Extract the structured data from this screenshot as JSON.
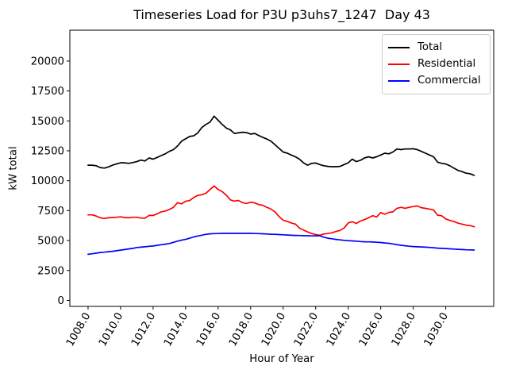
{
  "chart_data": {
    "type": "line",
    "title": "Timeseries Load for P3U p3uhs7_1247  Day 43",
    "xlabel": "Hour of Year",
    "ylabel": "kW total",
    "grid": false,
    "legend_position": "upper right",
    "xlim": [
      1006.88,
      1032.95
    ],
    "ylim": [
      -500,
      22580
    ],
    "x_start": 1008.0,
    "x_step": 0.25,
    "x_ticks": [
      {
        "value": 1008.0,
        "label": "1008.0"
      },
      {
        "value": 1010.0,
        "label": "1010.0"
      },
      {
        "value": 1012.0,
        "label": "1012.0"
      },
      {
        "value": 1014.0,
        "label": "1014.0"
      },
      {
        "value": 1016.0,
        "label": "1016.0"
      },
      {
        "value": 1018.0,
        "label": "1018.0"
      },
      {
        "value": 1020.0,
        "label": "1020.0"
      },
      {
        "value": 1022.0,
        "label": "1022.0"
      },
      {
        "value": 1024.0,
        "label": "1024.0"
      },
      {
        "value": 1026.0,
        "label": "1026.0"
      },
      {
        "value": 1028.0,
        "label": "1028.0"
      },
      {
        "value": 1030.0,
        "label": "1030.0"
      }
    ],
    "y_ticks": [
      {
        "value": 0,
        "label": "0"
      },
      {
        "value": 2500,
        "label": "2500"
      },
      {
        "value": 5000,
        "label": "5000"
      },
      {
        "value": 7500,
        "label": "7500"
      },
      {
        "value": 10000,
        "label": "10000"
      },
      {
        "value": 12500,
        "label": "12500"
      },
      {
        "value": 15000,
        "label": "15000"
      },
      {
        "value": 17500,
        "label": "17500"
      },
      {
        "value": 20000,
        "label": "20000"
      }
    ],
    "series": [
      {
        "name": "Total",
        "color": "#000000",
        "values": [
          11300,
          11300,
          11250,
          11100,
          11050,
          11150,
          11300,
          11400,
          11500,
          11500,
          11450,
          11520,
          11600,
          11720,
          11650,
          11900,
          11800,
          11950,
          12100,
          12250,
          12450,
          12600,
          12900,
          13300,
          13500,
          13700,
          13750,
          14000,
          14450,
          14700,
          14900,
          15400,
          15050,
          14700,
          14400,
          14250,
          13950,
          14000,
          14050,
          14020,
          13900,
          13950,
          13780,
          13620,
          13480,
          13300,
          13000,
          12700,
          12400,
          12300,
          12150,
          12000,
          11800,
          11500,
          11300,
          11450,
          11480,
          11350,
          11250,
          11200,
          11170,
          11170,
          11200,
          11350,
          11500,
          11800,
          11600,
          11700,
          11900,
          12000,
          11900,
          12000,
          12150,
          12300,
          12250,
          12400,
          12650,
          12600,
          12650,
          12650,
          12670,
          12600,
          12450,
          12300,
          12150,
          12000,
          11550,
          11450,
          11400,
          11250,
          11050,
          10870,
          10760,
          10630,
          10580,
          10450
        ]
      },
      {
        "name": "Residential",
        "color": "#ff0000",
        "values": [
          7150,
          7150,
          7050,
          6900,
          6850,
          6900,
          6920,
          6950,
          6980,
          6930,
          6900,
          6950,
          6950,
          6880,
          6870,
          7100,
          7100,
          7230,
          7400,
          7470,
          7600,
          7780,
          8170,
          8070,
          8280,
          8350,
          8600,
          8780,
          8830,
          8950,
          9270,
          9560,
          9270,
          9090,
          8800,
          8400,
          8300,
          8350,
          8170,
          8100,
          8200,
          8150,
          8000,
          7950,
          7780,
          7630,
          7400,
          7000,
          6700,
          6600,
          6470,
          6380,
          6050,
          5880,
          5720,
          5590,
          5500,
          5450,
          5550,
          5590,
          5650,
          5760,
          5850,
          6050,
          6480,
          6570,
          6430,
          6630,
          6750,
          6900,
          7080,
          6970,
          7340,
          7200,
          7350,
          7400,
          7700,
          7780,
          7700,
          7780,
          7840,
          7890,
          7750,
          7690,
          7630,
          7560,
          7120,
          7075,
          6810,
          6680,
          6590,
          6460,
          6370,
          6290,
          6250,
          6150
        ]
      },
      {
        "name": "Commercial",
        "color": "#0000ff",
        "values": [
          3850,
          3900,
          3950,
          4000,
          4030,
          4070,
          4100,
          4150,
          4200,
          4250,
          4300,
          4350,
          4420,
          4450,
          4480,
          4520,
          4550,
          4600,
          4650,
          4700,
          4750,
          4850,
          4950,
          5030,
          5100,
          5200,
          5300,
          5380,
          5450,
          5520,
          5560,
          5580,
          5590,
          5600,
          5600,
          5600,
          5600,
          5600,
          5600,
          5600,
          5600,
          5590,
          5580,
          5570,
          5550,
          5530,
          5520,
          5500,
          5480,
          5460,
          5440,
          5430,
          5420,
          5410,
          5400,
          5390,
          5390,
          5400,
          5280,
          5200,
          5150,
          5100,
          5060,
          5020,
          4990,
          4970,
          4950,
          4920,
          4900,
          4890,
          4880,
          4860,
          4840,
          4800,
          4770,
          4720,
          4660,
          4610,
          4570,
          4530,
          4500,
          4480,
          4470,
          4450,
          4425,
          4400,
          4370,
          4350,
          4335,
          4310,
          4290,
          4270,
          4250,
          4230,
          4220,
          4210
        ]
      }
    ]
  }
}
